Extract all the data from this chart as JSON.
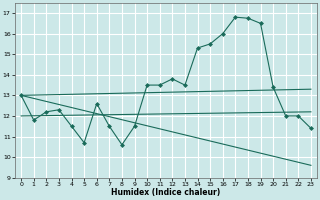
{
  "xlabel": "Humidex (Indice chaleur)",
  "bg_color": "#cce8e8",
  "grid_color": "#ffffff",
  "line_color": "#1a6b5a",
  "xlim": [
    -0.5,
    23.5
  ],
  "ylim": [
    9,
    17.5
  ],
  "yticks": [
    9,
    10,
    11,
    12,
    13,
    14,
    15,
    16,
    17
  ],
  "xticks": [
    0,
    1,
    2,
    3,
    4,
    5,
    6,
    7,
    8,
    9,
    10,
    11,
    12,
    13,
    14,
    15,
    16,
    17,
    18,
    19,
    20,
    21,
    22,
    23
  ],
  "curve_x": [
    0,
    1,
    2,
    3,
    4,
    5,
    6,
    7,
    8,
    9,
    10,
    11,
    12,
    13,
    14,
    15,
    16,
    17,
    18,
    19,
    20,
    21,
    22,
    23
  ],
  "curve_y": [
    13.0,
    11.8,
    12.2,
    12.3,
    11.5,
    10.7,
    12.6,
    11.5,
    10.6,
    11.5,
    13.5,
    13.5,
    13.8,
    13.5,
    15.3,
    15.5,
    16.0,
    16.8,
    16.75,
    16.5,
    13.4,
    12.0,
    12.0,
    11.4
  ],
  "trend1_x": [
    0,
    23
  ],
  "trend1_y": [
    13.0,
    13.3
  ],
  "trend2_x": [
    0,
    23
  ],
  "trend2_y": [
    12.0,
    12.2
  ],
  "trend3_x": [
    0,
    23
  ],
  "trend3_y": [
    13.0,
    9.6
  ]
}
